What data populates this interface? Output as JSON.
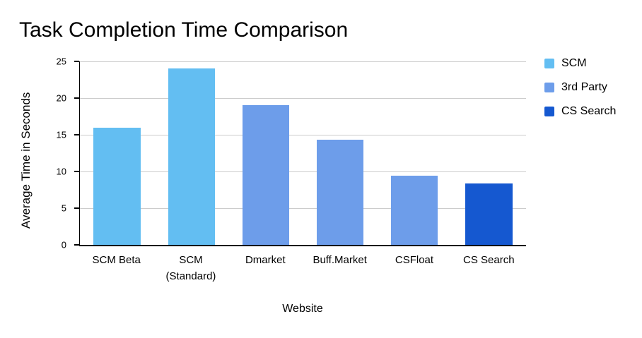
{
  "chart_data": {
    "type": "bar",
    "title": "Task Completion Time Comparison",
    "xlabel": "Website",
    "ylabel": "Average Time in Seconds",
    "categories": [
      "SCM Beta",
      "SCM\n(Standard)",
      "Dmarket",
      "Buff.Market",
      "CSFloat",
      "CS Search"
    ],
    "values": [
      16,
      24,
      19,
      14.3,
      9.4,
      8.4
    ],
    "bar_series": [
      "SCM",
      "SCM",
      "3rd Party",
      "3rd Party",
      "3rd Party",
      "CS Search"
    ],
    "legend": [
      {
        "label": "SCM",
        "color": "#63BEF2"
      },
      {
        "label": "3rd Party",
        "color": "#6D9DEA"
      },
      {
        "label": "CS Search",
        "color": "#1558D0"
      }
    ],
    "ylim": [
      0,
      25
    ],
    "yticks": [
      0,
      5,
      10,
      15,
      20,
      25
    ],
    "grid": true,
    "legend_position": "right",
    "grid_color": "#cccccc",
    "axis_color": "#000000",
    "background_color": "#ffffff"
  }
}
